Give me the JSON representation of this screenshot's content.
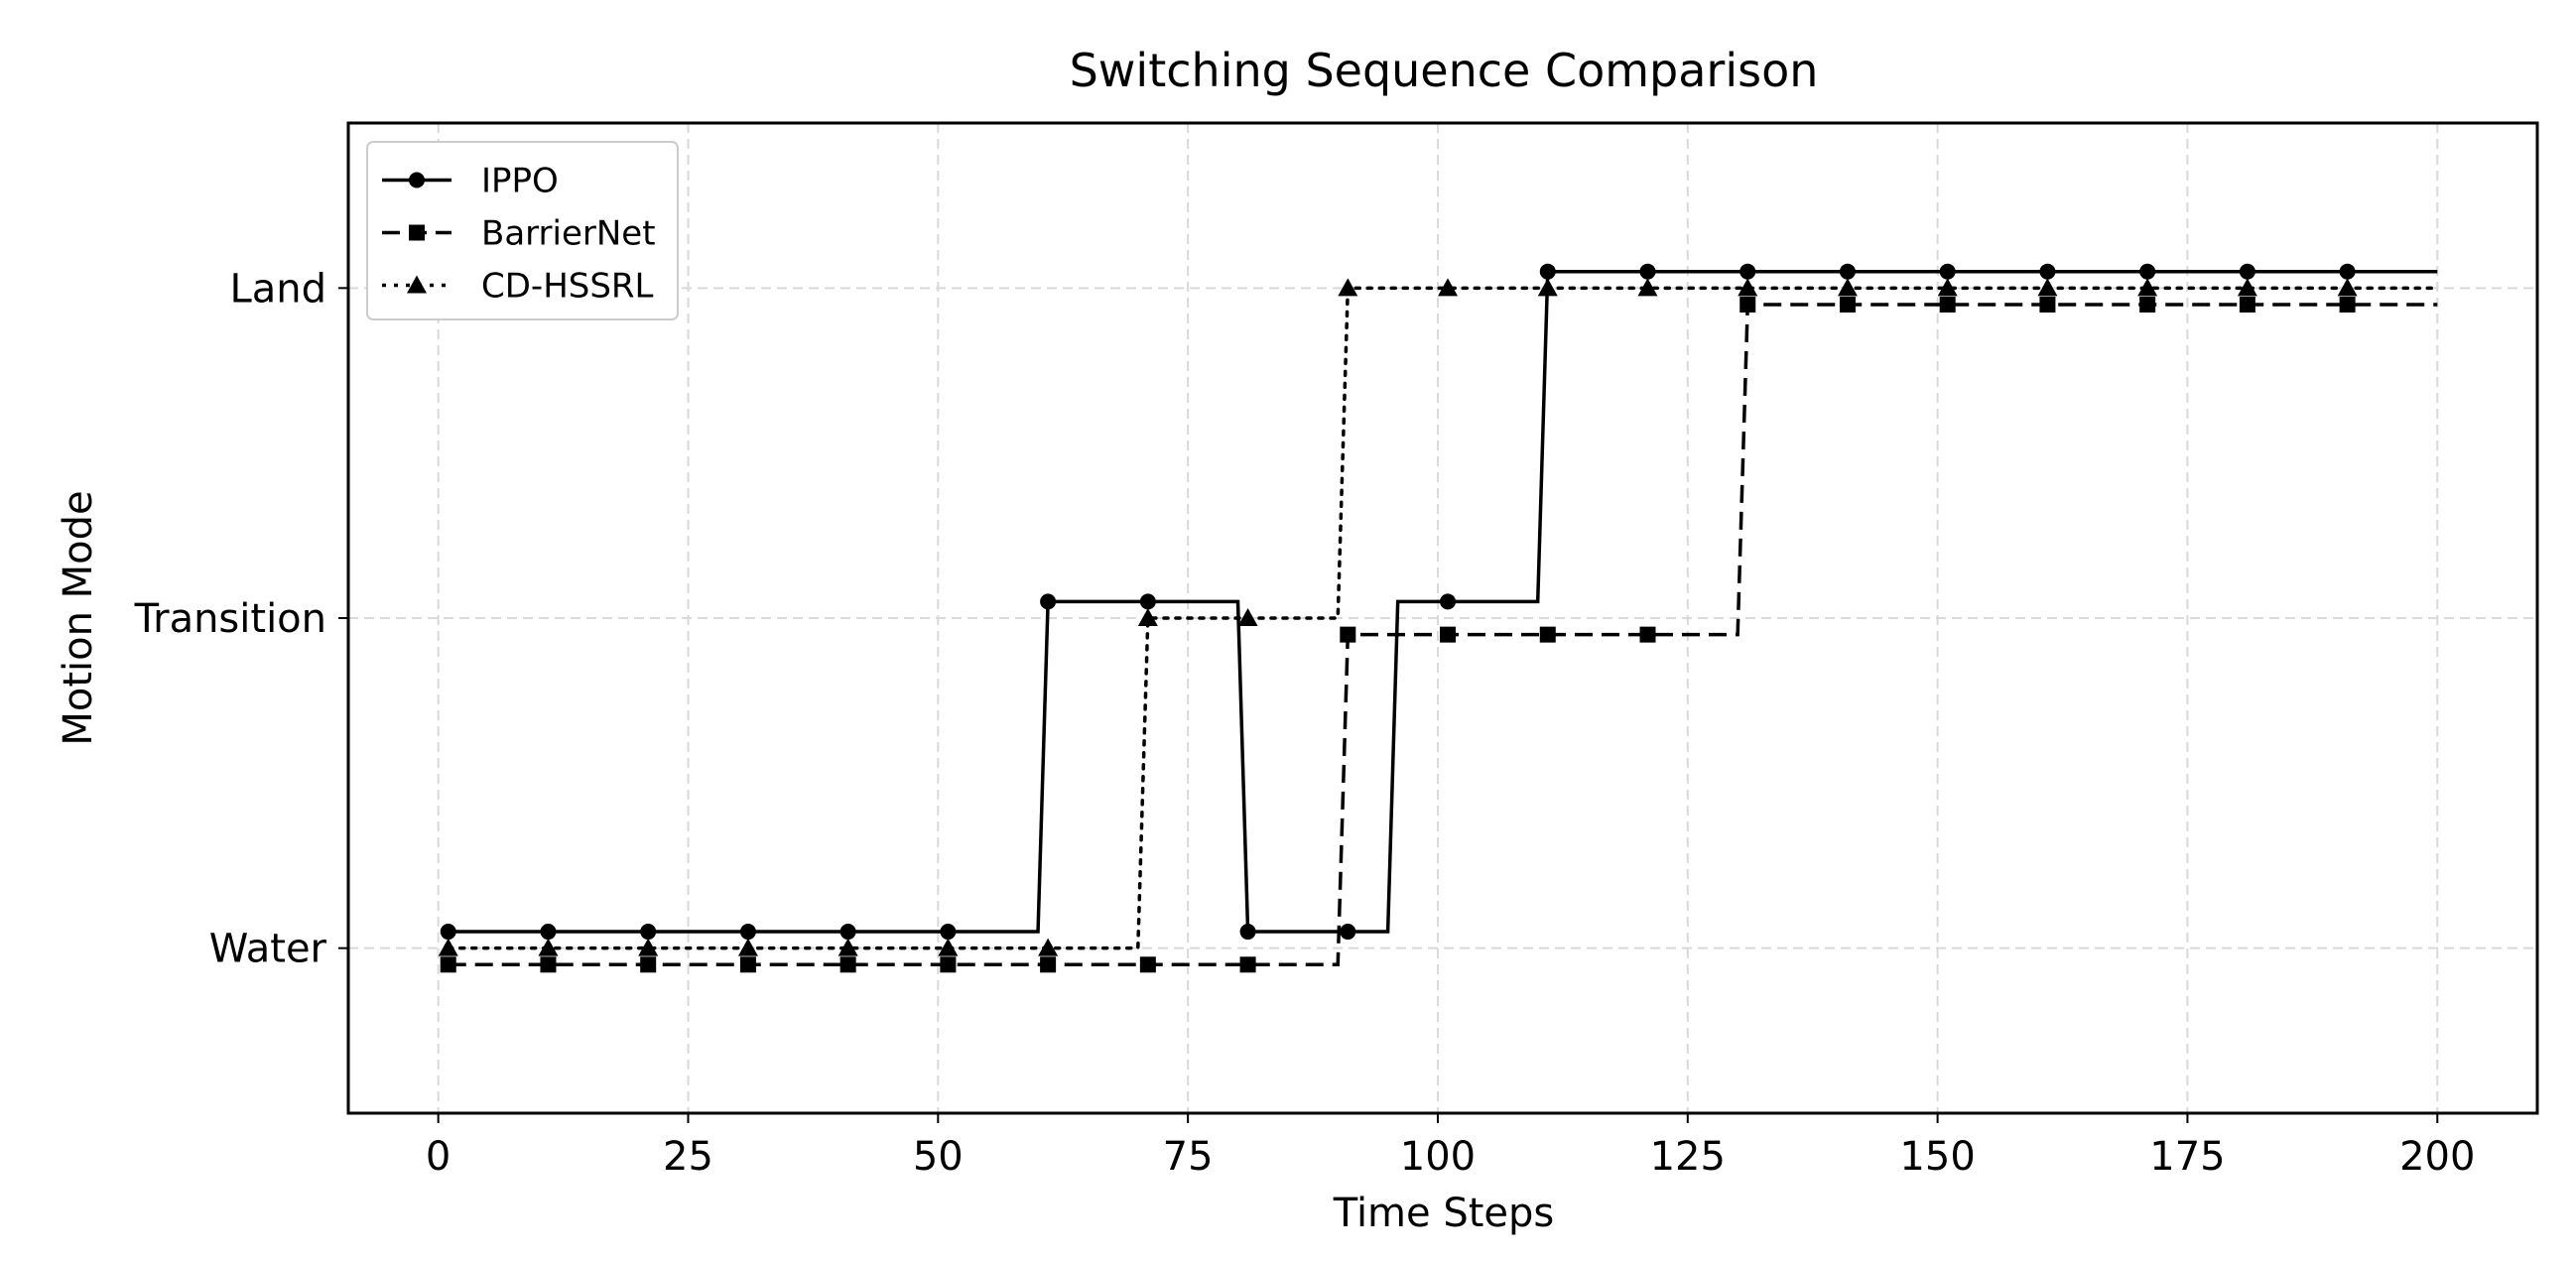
{
  "chart_data": {
    "type": "line",
    "title": "Switching Sequence Comparison",
    "xlabel": "Time Steps",
    "ylabel": "Motion Mode",
    "xlim": [
      -9,
      210
    ],
    "ylim": [
      -0.5,
      2.5
    ],
    "xticks": [
      0,
      25,
      50,
      75,
      100,
      125,
      150,
      175,
      200
    ],
    "yticks": [
      {
        "value": 0,
        "label": "Water"
      },
      {
        "value": 1,
        "label": "Transition"
      },
      {
        "value": 2,
        "label": "Land"
      }
    ],
    "grid": true,
    "legend_position": "top-left",
    "series": [
      {
        "name": "IPPO",
        "linestyle": "solid",
        "marker": "circle",
        "offset": 0.05,
        "color": "#000000",
        "x": [
          1,
          60,
          61,
          80,
          81,
          95,
          96,
          110,
          111,
          200
        ],
        "y": [
          0,
          0,
          1,
          1,
          0,
          0,
          1,
          1,
          2,
          2
        ],
        "marker_x": [
          1,
          11,
          21,
          31,
          41,
          51,
          61,
          71,
          81,
          91,
          101,
          111,
          121,
          131,
          141,
          151,
          161,
          171,
          181,
          191
        ]
      },
      {
        "name": "BarrierNet",
        "linestyle": "dashed",
        "marker": "square",
        "offset": -0.05,
        "color": "#000000",
        "x": [
          1,
          90,
          91,
          130,
          131,
          200
        ],
        "y": [
          0,
          0,
          1,
          1,
          2,
          2
        ],
        "marker_x": [
          1,
          11,
          21,
          31,
          41,
          51,
          61,
          71,
          81,
          91,
          101,
          111,
          121,
          131,
          141,
          151,
          161,
          171,
          181,
          191
        ]
      },
      {
        "name": "CD-HSSRL",
        "linestyle": "dotted",
        "marker": "triangle",
        "offset": 0,
        "color": "#000000",
        "x": [
          1,
          70,
          71,
          90,
          91,
          200
        ],
        "y": [
          0,
          0,
          1,
          1,
          2,
          2
        ],
        "marker_x": [
          1,
          11,
          21,
          31,
          41,
          51,
          61,
          71,
          81,
          91,
          101,
          111,
          121,
          131,
          141,
          151,
          161,
          171,
          181,
          191
        ]
      }
    ]
  }
}
